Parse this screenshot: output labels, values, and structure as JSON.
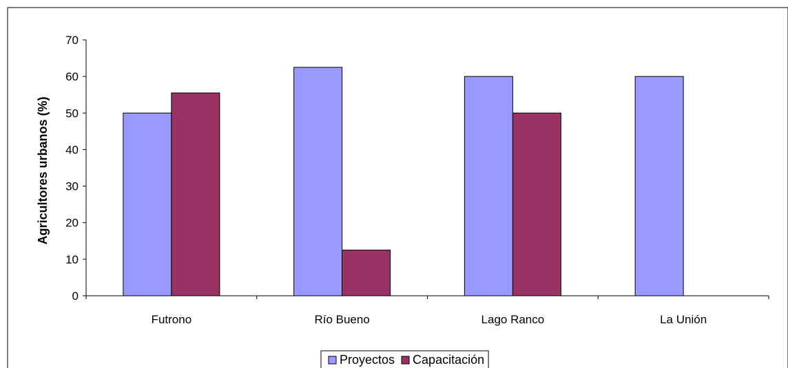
{
  "chart_data": {
    "type": "bar",
    "categories": [
      "Futrono",
      "Río Bueno",
      "Lago Ranco",
      "La Unión"
    ],
    "series": [
      {
        "name": "Proyectos",
        "values": [
          50,
          62.5,
          60,
          60
        ]
      },
      {
        "name": "Capacitación",
        "values": [
          55.5,
          12.5,
          50,
          0
        ]
      }
    ],
    "ylabel": "Agricultores urbanos (%)",
    "ylim": [
      0,
      70
    ],
    "yticks": [
      0,
      10,
      20,
      30,
      40,
      50,
      60,
      70
    ],
    "grid": false,
    "legend_position": "bottom",
    "colors": {
      "Proyectos": "#9999ff",
      "Capacitación": "#993366",
      "outline": "#000000"
    }
  }
}
